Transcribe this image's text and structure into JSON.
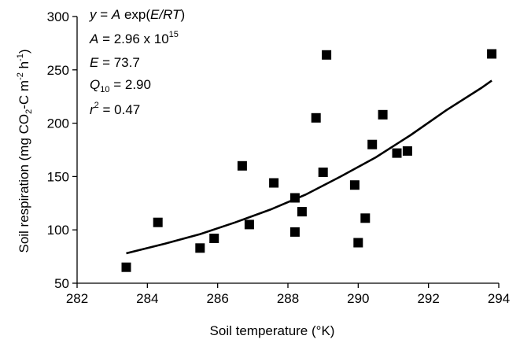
{
  "chart_data": {
    "type": "scatter",
    "title": "",
    "xlabel": "Soil temperature (°K)",
    "ylabel": "Soil respiration (mg CO2-C m-2 h-1)",
    "xlim": [
      282,
      294
    ],
    "ylim": [
      50,
      300
    ],
    "x_ticks": [
      "282",
      "284",
      "286",
      "288",
      "290",
      "292",
      "294"
    ],
    "y_ticks": [
      "50",
      "100",
      "150",
      "200",
      "250",
      "300"
    ],
    "grid": false,
    "legend": "none",
    "marker_color": "#000000",
    "series": [
      {
        "points": [
          [
            283.4,
            65
          ],
          [
            284.3,
            107
          ],
          [
            285.5,
            83
          ],
          [
            285.9,
            92
          ],
          [
            286.7,
            160
          ],
          [
            286.9,
            105
          ],
          [
            287.6,
            144
          ],
          [
            288.2,
            130
          ],
          [
            288.2,
            98
          ],
          [
            288.4,
            117
          ],
          [
            288.8,
            205
          ],
          [
            289.0,
            154
          ],
          [
            289.1,
            264
          ],
          [
            289.9,
            142
          ],
          [
            290.0,
            88
          ],
          [
            290.2,
            111
          ],
          [
            290.4,
            180
          ],
          [
            290.7,
            208
          ],
          [
            291.1,
            172
          ],
          [
            291.4,
            174
          ],
          [
            293.8,
            265
          ]
        ]
      }
    ],
    "fit_curve": {
      "x": [
        283.4,
        284.5,
        285.5,
        286.5,
        287.5,
        288.5,
        289.5,
        290.5,
        291.5,
        292.5,
        293.5,
        293.8
      ],
      "y": [
        78,
        87,
        96,
        107,
        119,
        133,
        150,
        168,
        189,
        212,
        233,
        240
      ]
    },
    "annotations": {
      "eq_y": "y",
      "eq_mid": " = ",
      "eq_A": "A",
      "eq_exp": " exp(",
      "eq_ERT": "E/RT",
      "eq_close": ")",
      "A_label": "A",
      "A_value": " = 2.96 x 10",
      "A_exp": "15",
      "E_label": "E",
      "E_value": " = 73.7",
      "Q_label": "Q",
      "Q_sub": "10",
      "Q_value": " = 2.90",
      "r_label": "r",
      "r_sup": "2",
      "r_value": " = 0.47"
    }
  }
}
